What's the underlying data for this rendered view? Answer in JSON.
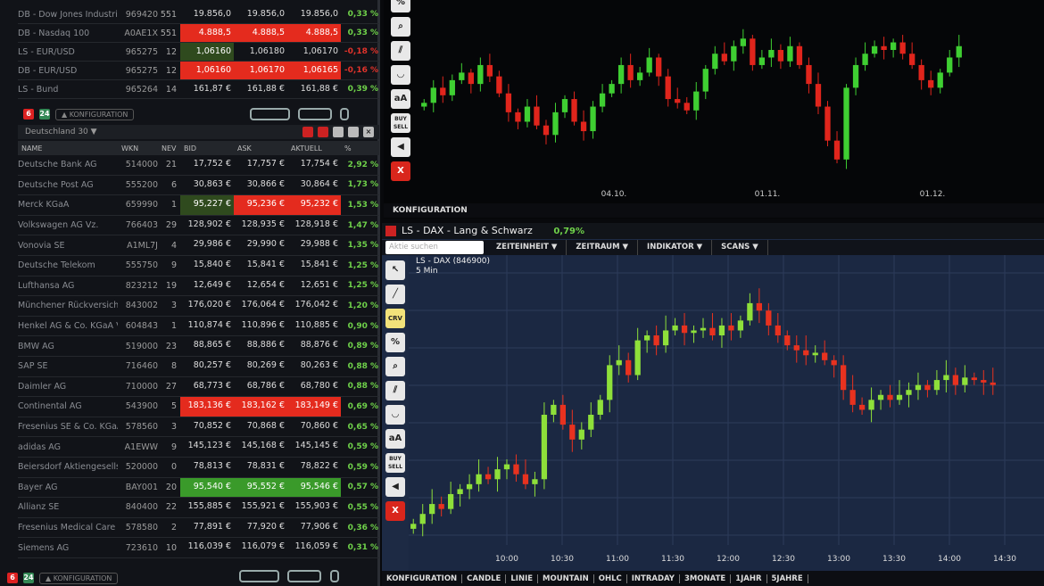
{
  "quotes_top": [
    {
      "name": "DB - Dow Jones Industria",
      "wkn": "969420",
      "nev": "551",
      "bid": "19.856,0",
      "ask": "19.856,0",
      "akt": "19.856,0",
      "pct": "0,33 %",
      "hl": ""
    },
    {
      "name": "DB - Nasdaq 100",
      "wkn": "A0AE1X",
      "nev": "551",
      "bid": "4.888,5",
      "ask": "4.888,5",
      "akt": "4.888,5",
      "pct": "0,33 %",
      "hl": "red"
    },
    {
      "name": "LS - EUR/USD",
      "wkn": "965275",
      "nev": "12",
      "bid": "1,06160",
      "ask": "1,06180",
      "akt": "1,06170",
      "pct": "-0,18 %",
      "hl": "dgreen"
    },
    {
      "name": "DB - EUR/USD",
      "wkn": "965275",
      "nev": "12",
      "bid": "1,06160",
      "ask": "1,06170",
      "akt": "1,06165",
      "pct": "-0,16 %",
      "hl": "red"
    },
    {
      "name": "LS - Bund",
      "wkn": "965264",
      "nev": "14",
      "bid": "161,87 €",
      "ask": "161,88 €",
      "akt": "161,88 €",
      "pct": "0,39 %",
      "hl": ""
    }
  ],
  "top_bar": {
    "badge_red": "6",
    "badge_green": "24",
    "config": "▲ KONFIGURATION"
  },
  "dax_panel": {
    "title": "Deutschland 30",
    "columns": [
      "NAME",
      "WKN",
      "NEV",
      "BID",
      "ASK",
      "AKTUELL",
      "%"
    ]
  },
  "stocks": [
    {
      "name": "Deutsche Bank AG",
      "wkn": "514000",
      "nev": "21",
      "bid": "17,752 €",
      "ask": "17,757 €",
      "akt": "17,754 €",
      "pct": "2,92 %",
      "hl": ""
    },
    {
      "name": "Deutsche Post AG",
      "wkn": "555200",
      "nev": "6",
      "bid": "30,863 €",
      "ask": "30,866 €",
      "akt": "30,864 €",
      "pct": "1,73 %",
      "hl": ""
    },
    {
      "name": "Merck KGaA",
      "wkn": "659990",
      "nev": "1",
      "bid": "95,227 €",
      "ask": "95,236 €",
      "akt": "95,232 €",
      "pct": "1,53 %",
      "hl": "merck"
    },
    {
      "name": "Volkswagen AG Vz.",
      "wkn": "766403",
      "nev": "29",
      "bid": "128,902 €",
      "ask": "128,935 €",
      "akt": "128,918 €",
      "pct": "1,47 %",
      "hl": ""
    },
    {
      "name": "Vonovia SE",
      "wkn": "A1ML7J",
      "nev": "4",
      "bid": "29,986 €",
      "ask": "29,990 €",
      "akt": "29,988 €",
      "pct": "1,35 %",
      "hl": ""
    },
    {
      "name": "Deutsche Telekom",
      "wkn": "555750",
      "nev": "9",
      "bid": "15,840 €",
      "ask": "15,841 €",
      "akt": "15,841 €",
      "pct": "1,25 %",
      "hl": ""
    },
    {
      "name": "Lufthansa AG",
      "wkn": "823212",
      "nev": "19",
      "bid": "12,649 €",
      "ask": "12,654 €",
      "akt": "12,651 €",
      "pct": "1,25 %",
      "hl": ""
    },
    {
      "name": "Münchener Rückversiche",
      "wkn": "843002",
      "nev": "3",
      "bid": "176,020 €",
      "ask": "176,064 €",
      "akt": "176,042 €",
      "pct": "1,20 %",
      "hl": ""
    },
    {
      "name": "Henkel AG & Co. KGaA V.",
      "wkn": "604843",
      "nev": "1",
      "bid": "110,874 €",
      "ask": "110,896 €",
      "akt": "110,885 €",
      "pct": "0,90 %",
      "hl": ""
    },
    {
      "name": "BMW AG",
      "wkn": "519000",
      "nev": "23",
      "bid": "88,865 €",
      "ask": "88,886 €",
      "akt": "88,876 €",
      "pct": "0,89 %",
      "hl": ""
    },
    {
      "name": "SAP SE",
      "wkn": "716460",
      "nev": "8",
      "bid": "80,257 €",
      "ask": "80,269 €",
      "akt": "80,263 €",
      "pct": "0,88 %",
      "hl": ""
    },
    {
      "name": "Daimler AG",
      "wkn": "710000",
      "nev": "27",
      "bid": "68,773 €",
      "ask": "68,786 €",
      "akt": "68,780 €",
      "pct": "0,88 %",
      "hl": ""
    },
    {
      "name": "Continental AG",
      "wkn": "543900",
      "nev": "5",
      "bid": "183,136 €",
      "ask": "183,162 €",
      "akt": "183,149 €",
      "pct": "0,69 %",
      "hl": "red"
    },
    {
      "name": "Fresenius SE & Co. KGaA",
      "wkn": "578560",
      "nev": "3",
      "bid": "70,852 €",
      "ask": "70,868 €",
      "akt": "70,860 €",
      "pct": "0,65 %",
      "hl": ""
    },
    {
      "name": "adidas AG",
      "wkn": "A1EWW",
      "nev": "9",
      "bid": "145,123 €",
      "ask": "145,168 €",
      "akt": "145,145 €",
      "pct": "0,59 %",
      "hl": ""
    },
    {
      "name": "Beiersdorf Aktiengesellsc",
      "wkn": "520000",
      "nev": "0",
      "bid": "78,813 €",
      "ask": "78,831 €",
      "akt": "78,822 €",
      "pct": "0,59 %",
      "hl": ""
    },
    {
      "name": "Bayer AG",
      "wkn": "BAY001",
      "nev": "20",
      "bid": "95,540 €",
      "ask": "95,552 €",
      "akt": "95,546 €",
      "pct": "0,57 %",
      "hl": "green"
    },
    {
      "name": "Allianz SE",
      "wkn": "840400",
      "nev": "22",
      "bid": "155,885 €",
      "ask": "155,921 €",
      "akt": "155,903 €",
      "pct": "0,55 %",
      "hl": ""
    },
    {
      "name": "Fresenius Medical Care A",
      "wkn": "578580",
      "nev": "2",
      "bid": "77,891 €",
      "ask": "77,920 €",
      "akt": "77,906 €",
      "pct": "0,36 %",
      "hl": ""
    },
    {
      "name": "Siemens AG",
      "wkn": "723610",
      "nev": "10",
      "bid": "116,039 €",
      "ask": "116,079 €",
      "akt": "116,059 €",
      "pct": "0,31 %",
      "hl": ""
    }
  ],
  "bottom_bar": {
    "badge_red": "6",
    "badge_green": "24",
    "config": "▲ KONFIGURATION"
  },
  "top_chart": {
    "x_labels": [
      "04.10.",
      "01.11.",
      "01.12."
    ],
    "config": "KONFIGURATION",
    "closes": [
      50,
      58,
      54,
      62,
      66,
      60,
      70,
      64,
      55,
      45,
      40,
      48,
      38,
      33,
      45,
      52,
      40,
      35,
      48,
      55,
      60,
      70,
      62,
      66,
      74,
      64,
      52,
      50,
      46,
      56,
      68,
      76,
      72,
      80,
      84,
      70,
      74,
      78,
      72,
      80,
      70,
      60,
      48,
      30,
      20,
      58,
      70,
      76,
      80,
      78,
      82,
      76,
      70,
      62,
      58,
      66,
      74,
      80
    ]
  },
  "chart_window": {
    "title": "LS - DAX - Lang & Schwarz",
    "change": "0,79%",
    "search_placeholder": "Aktie suchen",
    "menus": [
      "ZEITEINHEIT ▼",
      "ZEITRAUM ▼",
      "INDIKATOR ▼",
      "SCANS ▼"
    ],
    "instrument": "LS - DAX (846900)",
    "interval": "5 Min",
    "tools": [
      "↖",
      "╱",
      "CRV",
      "%",
      "⌕",
      "⫽",
      "◡",
      "aA",
      "BUY SELL",
      "◀",
      "X"
    ],
    "nav": [
      "KONFIGURATION",
      "CANDLE",
      "LINIE",
      "MOUNTAIN",
      "OHLC",
      "INTRADAY",
      "3MONATE",
      "1JAHR",
      "5JAHRE"
    ]
  },
  "chart_data": {
    "type": "candlestick",
    "x_ticks": [
      "10:00",
      "10:30",
      "11:00",
      "11:30",
      "12:00",
      "12:30",
      "13:00",
      "13:30",
      "14:00",
      "14:30"
    ],
    "closes": [
      6,
      10,
      14,
      12,
      18,
      20,
      22,
      26,
      24,
      28,
      30,
      26,
      22,
      24,
      50,
      54,
      46,
      40,
      44,
      50,
      56,
      70,
      72,
      66,
      80,
      82,
      78,
      84,
      86,
      83,
      84,
      85,
      82,
      86,
      84,
      88,
      95,
      92,
      86,
      82,
      78,
      76,
      74,
      75,
      72,
      70,
      60,
      54,
      52,
      56,
      58,
      56,
      58,
      60,
      62,
      60,
      64,
      66,
      62,
      65,
      64,
      63,
      62
    ]
  },
  "colors": {
    "up": "#8ee03a",
    "down": "#e8321f",
    "up_top": "#3fcf32",
    "down_top": "#e0251c"
  }
}
